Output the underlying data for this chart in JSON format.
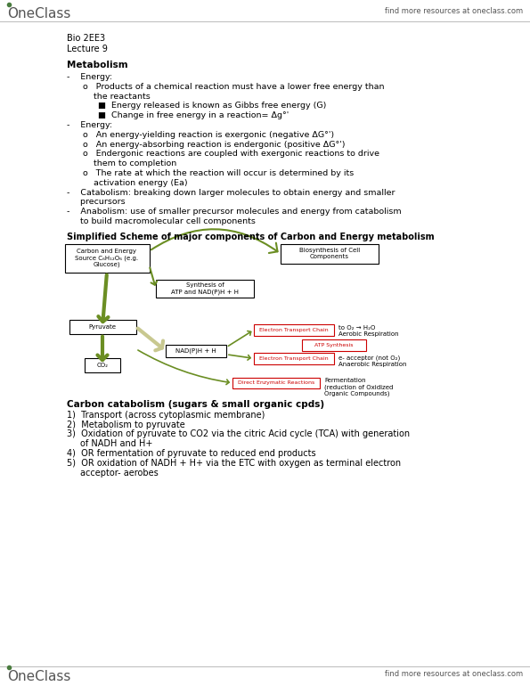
{
  "bg_color": "#ffffff",
  "header_right_text": "find more resources at oneclass.com",
  "footer_right_text": "find more resources at oneclass.com",
  "course_line1": "Bio 2EE3",
  "course_line2": "Lecture 9",
  "section1_title": "Metabolism",
  "diagram_title": "Simplified Scheme of major components of Carbon and Energy metabolism",
  "carbon_catabolism_title": "Carbon catabolism (sugars & small organic cpds)",
  "garrow": "#6b8e23",
  "rarrow": "#cc0000",
  "text_color": "#000000"
}
